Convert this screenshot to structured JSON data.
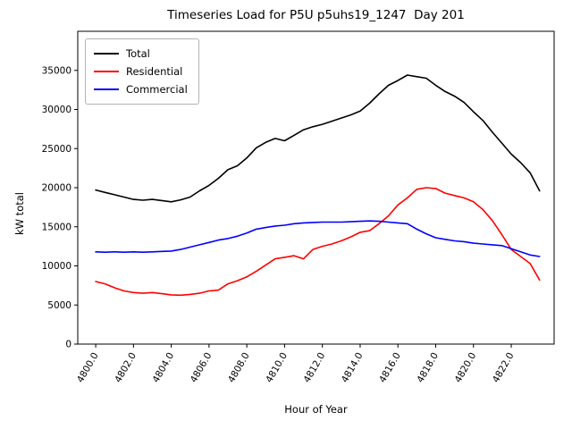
{
  "chart_data": {
    "type": "line",
    "title": "Timeseries Load for P5U p5uhs19_1247  Day 201",
    "xlabel": "Hour of Year",
    "ylabel": "kW total",
    "legend_position": "upper left",
    "grid": false,
    "axes": {
      "xlim": [
        4799.05,
        4824.27
      ],
      "ylim": [
        0,
        40000
      ],
      "x_ticks": [
        {
          "value": 4800,
          "label": "4800.0"
        },
        {
          "value": 4802,
          "label": "4802.0"
        },
        {
          "value": 4804,
          "label": "4804.0"
        },
        {
          "value": 4806,
          "label": "4806.0"
        },
        {
          "value": 4808,
          "label": "4808.0"
        },
        {
          "value": 4810,
          "label": "4810.0"
        },
        {
          "value": 4812,
          "label": "4812.0"
        },
        {
          "value": 4814,
          "label": "4814.0"
        },
        {
          "value": 4816,
          "label": "4816.0"
        },
        {
          "value": 4818,
          "label": "4818.0"
        },
        {
          "value": 4820,
          "label": "4820.0"
        },
        {
          "value": 4822,
          "label": "4822.0"
        }
      ],
      "y_ticks": [
        {
          "value": 0,
          "label": "0"
        },
        {
          "value": 5000,
          "label": "5000"
        },
        {
          "value": 10000,
          "label": "10000"
        },
        {
          "value": 15000,
          "label": "15000"
        },
        {
          "value": 20000,
          "label": "20000"
        },
        {
          "value": 25000,
          "label": "25000"
        },
        {
          "value": 30000,
          "label": "30000"
        },
        {
          "value": 35000,
          "label": "35000"
        }
      ]
    },
    "x": [
      4800,
      4800.5,
      4801,
      4801.5,
      4802,
      4802.5,
      4803,
      4803.5,
      4804,
      4804.5,
      4805,
      4805.5,
      4806,
      4806.5,
      4807,
      4807.5,
      4808,
      4808.5,
      4809,
      4809.5,
      4810,
      4810.5,
      4811,
      4811.5,
      4812,
      4812.5,
      4813,
      4813.5,
      4814,
      4814.5,
      4815,
      4815.5,
      4816,
      4816.5,
      4817,
      4817.5,
      4818,
      4818.5,
      4819,
      4819.5,
      4820,
      4820.5,
      4821,
      4821.5,
      4822,
      4822.5,
      4823,
      4823.5
    ],
    "series": [
      {
        "name": "Total",
        "color": "#000000",
        "values": [
          19700,
          19400,
          19100,
          18800,
          18500,
          18400,
          18500,
          18350,
          18200,
          18450,
          18800,
          19600,
          20300,
          21200,
          22300,
          22800,
          23800,
          25100,
          25800,
          26300,
          26000,
          26700,
          27400,
          27800,
          28100,
          28500,
          28900,
          29300,
          29800,
          30800,
          32000,
          33100,
          33700,
          34400,
          34200,
          34000,
          33100,
          32300,
          31700,
          30900,
          29700,
          28600,
          27100,
          25700,
          24300,
          23200,
          21900,
          19600
        ]
      },
      {
        "name": "Residential",
        "color": "#ff0000",
        "values": [
          8000,
          7700,
          7200,
          6800,
          6600,
          6500,
          6600,
          6450,
          6300,
          6250,
          6350,
          6500,
          6800,
          6900,
          7700,
          8100,
          8600,
          9300,
          10100,
          10900,
          11100,
          11300,
          10900,
          12100,
          12500,
          12800,
          13200,
          13700,
          14300,
          14500,
          15400,
          16400,
          17800,
          18700,
          19800,
          20000,
          19900,
          19300,
          19000,
          18700,
          18200,
          17200,
          15800,
          14000,
          12100,
          11200,
          10300,
          8200
        ]
      },
      {
        "name": "Commercial",
        "color": "#0000ff",
        "values": [
          11800,
          11750,
          11800,
          11750,
          11800,
          11750,
          11800,
          11850,
          11900,
          12100,
          12400,
          12700,
          13000,
          13300,
          13500,
          13800,
          14200,
          14700,
          14900,
          15100,
          15200,
          15400,
          15500,
          15550,
          15600,
          15600,
          15600,
          15650,
          15700,
          15750,
          15700,
          15600,
          15500,
          15400,
          14700,
          14100,
          13600,
          13400,
          13200,
          13100,
          12900,
          12800,
          12700,
          12600,
          12200,
          11800,
          11400,
          11200
        ]
      }
    ]
  }
}
